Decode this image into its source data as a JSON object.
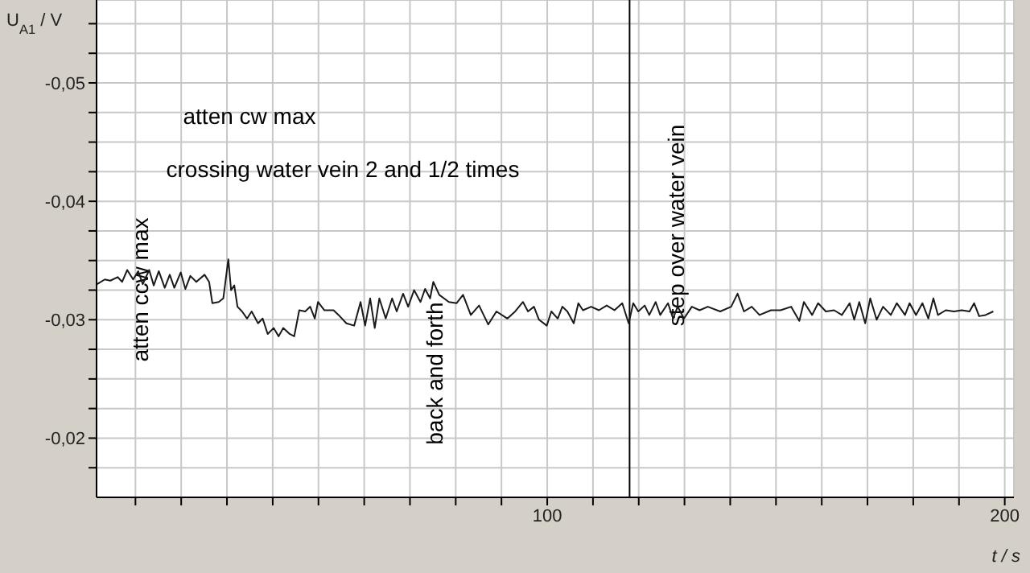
{
  "chart_data": {
    "type": "line",
    "xlabel": "t / s",
    "ylabel": "U$_{A1}$ / V",
    "xlim": [
      1.5,
      202
    ],
    "ylim": [
      -0.015,
      -0.057
    ],
    "xticks": [
      {
        "value": 10,
        "label": null
      },
      {
        "value": 20,
        "label": null
      },
      {
        "value": 30,
        "label": null
      },
      {
        "value": 40,
        "label": null
      },
      {
        "value": 50,
        "label": null
      },
      {
        "value": 60,
        "label": null
      },
      {
        "value": 70,
        "label": null
      },
      {
        "value": 80,
        "label": null
      },
      {
        "value": 90,
        "label": null
      },
      100,
      {
        "value": 110,
        "label": null
      },
      {
        "value": 120,
        "label": null
      },
      {
        "value": 130,
        "label": null
      },
      {
        "value": 140,
        "label": null
      },
      {
        "value": 150,
        "label": null
      },
      {
        "value": 160,
        "label": null
      },
      {
        "value": 170,
        "label": null
      },
      {
        "value": 180,
        "label": null
      },
      {
        "value": 190,
        "label": null
      },
      200
    ],
    "yticks": [
      {
        "value": -0.0175,
        "label": null
      },
      {
        "value": -0.02,
        "label": "-0,02"
      },
      {
        "value": -0.0225,
        "label": null
      },
      {
        "value": -0.025,
        "label": null
      },
      {
        "value": -0.0275,
        "label": null
      },
      {
        "value": -0.03,
        "label": "-0,03"
      },
      {
        "value": -0.0325,
        "label": null
      },
      {
        "value": -0.035,
        "label": null
      },
      {
        "value": -0.0375,
        "label": null
      },
      {
        "value": -0.04,
        "label": "-0,04"
      },
      {
        "value": -0.0425,
        "label": null
      },
      {
        "value": -0.045,
        "label": null
      },
      {
        "value": -0.0475,
        "label": null
      },
      {
        "value": -0.05,
        "label": "-0,05"
      },
      {
        "value": -0.0525,
        "label": null
      },
      {
        "value": -0.055,
        "label": null
      }
    ],
    "grid": true,
    "legend": false,
    "marker": "none",
    "line_style": "solid",
    "ref_lines": [
      {
        "axis": "x",
        "value": 118,
        "label": null,
        "color": "#000000"
      }
    ],
    "annotations": [
      "atten cw max",
      "crossing water vein 2 and 1/2 times",
      "atten ccw max",
      "back and forth",
      "step over water vein"
    ],
    "series": [
      {
        "color": "#1a1a1a",
        "x": [
          1.6,
          3.3,
          4.5,
          6.1,
          7.1,
          8.2,
          9.5,
          10.6,
          11.6,
          13.0,
          14.0,
          15.1,
          16.4,
          17.5,
          18.5,
          19.9,
          20.9,
          22.0,
          23.3,
          25.1,
          26.1,
          26.8,
          28.2,
          29.2,
          30.3,
          30.9,
          31.6,
          32.3,
          33.3,
          34.4,
          35.4,
          36.8,
          37.8,
          38.9,
          40.2,
          41.3,
          42.3,
          43.7,
          44.7,
          45.8,
          47.1,
          48.2,
          49.2,
          49.9,
          51.3,
          53.3,
          54.4,
          56.1,
          57.8,
          59.2,
          60.2,
          61.3,
          62.3,
          63.3,
          64.7,
          66.1,
          67.1,
          68.5,
          69.6,
          70.9,
          72.3,
          73.3,
          74.4,
          75.1,
          76.4,
          78.5,
          80.2,
          81.6,
          83.3,
          85.1,
          87.1,
          88.9,
          91.3,
          93.0,
          94.7,
          95.8,
          97.1,
          98.2,
          99.9,
          100.9,
          102.3,
          103.3,
          104.4,
          105.8,
          106.8,
          107.8,
          109.6,
          111.3,
          113.0,
          114.7,
          116.4,
          117.8,
          118.8,
          119.9,
          121.3,
          122.3,
          123.7,
          124.7,
          126.4,
          127.5,
          128.5,
          129.9,
          131.6,
          133.3,
          135.1,
          137.8,
          140.2,
          141.6,
          143.0,
          144.7,
          146.4,
          148.9,
          151.0,
          153.3,
          155.1,
          156.1,
          157.9,
          159.2,
          160.9,
          162.7,
          164.4,
          166.1,
          167.1,
          168.2,
          169.5,
          170.6,
          172.0,
          173.4,
          175.1,
          176.4,
          178.2,
          179.2,
          180.6,
          182.0,
          183.3,
          184.4,
          185.4,
          187.1,
          188.9,
          190.6,
          192.3,
          193.3,
          194.4,
          195.8,
          197.5
        ],
        "values": [
          -0.033,
          -0.0334,
          -0.0333,
          -0.0336,
          -0.0332,
          -0.0342,
          -0.0334,
          -0.0341,
          -0.033,
          -0.0342,
          -0.0329,
          -0.0341,
          -0.0327,
          -0.0338,
          -0.0327,
          -0.034,
          -0.0326,
          -0.0337,
          -0.0332,
          -0.0338,
          -0.0332,
          -0.0314,
          -0.0315,
          -0.0318,
          -0.0351,
          -0.0325,
          -0.0329,
          -0.0311,
          -0.0307,
          -0.0301,
          -0.0307,
          -0.0297,
          -0.0301,
          -0.0288,
          -0.0293,
          -0.0286,
          -0.0293,
          -0.0288,
          -0.0286,
          -0.0308,
          -0.0307,
          -0.0311,
          -0.0301,
          -0.0315,
          -0.0308,
          -0.0308,
          -0.0304,
          -0.0297,
          -0.0295,
          -0.0315,
          -0.0295,
          -0.0318,
          -0.0293,
          -0.0318,
          -0.0301,
          -0.0318,
          -0.0307,
          -0.0322,
          -0.0311,
          -0.0325,
          -0.0315,
          -0.0326,
          -0.0318,
          -0.0332,
          -0.0321,
          -0.0315,
          -0.0314,
          -0.0321,
          -0.0304,
          -0.0312,
          -0.0296,
          -0.0307,
          -0.0301,
          -0.0307,
          -0.0315,
          -0.0307,
          -0.0311,
          -0.03,
          -0.0295,
          -0.0307,
          -0.0301,
          -0.0311,
          -0.0307,
          -0.0297,
          -0.0314,
          -0.0308,
          -0.0311,
          -0.0308,
          -0.0312,
          -0.0308,
          -0.0314,
          -0.0297,
          -0.0314,
          -0.0307,
          -0.0312,
          -0.0304,
          -0.0315,
          -0.0304,
          -0.0314,
          -0.0301,
          -0.0311,
          -0.0301,
          -0.0311,
          -0.0308,
          -0.0311,
          -0.0307,
          -0.0311,
          -0.0322,
          -0.0307,
          -0.0311,
          -0.0304,
          -0.0308,
          -0.0308,
          -0.0311,
          -0.0299,
          -0.0315,
          -0.0304,
          -0.0314,
          -0.0307,
          -0.0308,
          -0.0304,
          -0.0314,
          -0.03,
          -0.0315,
          -0.0297,
          -0.0318,
          -0.03,
          -0.0311,
          -0.0304,
          -0.0314,
          -0.0304,
          -0.0314,
          -0.0304,
          -0.0314,
          -0.0301,
          -0.0318,
          -0.0304,
          -0.0308,
          -0.0307,
          -0.0308,
          -0.0307,
          -0.0314,
          -0.0303,
          -0.0304,
          -0.0307
        ]
      }
    ]
  }
}
